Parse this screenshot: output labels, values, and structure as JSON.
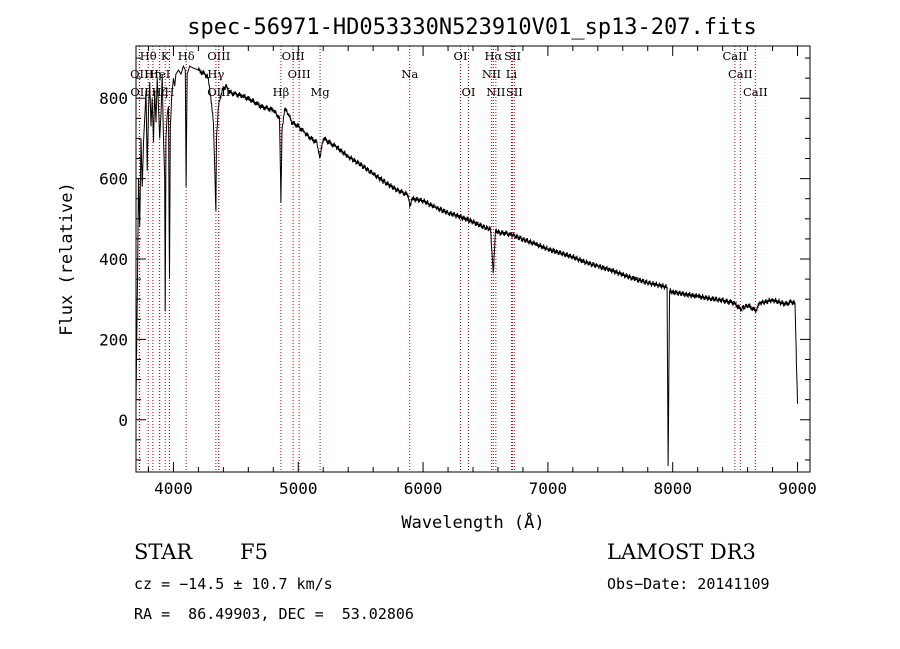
{
  "chart_data": {
    "type": "line",
    "title": "spec-56971-HD053330N523910V01_sp13-207.fits",
    "xlabel": "Wavelength (Å)",
    "ylabel": "Flux (relative)",
    "xlim": [
      3700,
      9100
    ],
    "ylim": [
      -130,
      930
    ],
    "xticks": [
      4000,
      5000,
      6000,
      7000,
      8000,
      9000
    ],
    "yticks": [
      0,
      200,
      400,
      600,
      800
    ],
    "series": [
      {
        "name": "flux",
        "x": [
          3700,
          3710,
          3720,
          3730,
          3740,
          3750,
          3760,
          3770,
          3780,
          3790,
          3800,
          3810,
          3820,
          3830,
          3840,
          3850,
          3860,
          3870,
          3880,
          3890,
          3900,
          3910,
          3920,
          3930,
          3934,
          3940,
          3950,
          3960,
          3968,
          3975,
          3985,
          4000,
          4010,
          4020,
          4040,
          4060,
          4080,
          4095,
          4101,
          4110,
          4130,
          4160,
          4200,
          4250,
          4280,
          4300,
          4320,
          4340,
          4345,
          4360,
          4390,
          4420,
          4450,
          4500,
          4550,
          4600,
          4650,
          4700,
          4750,
          4800,
          4830,
          4850,
          4861,
          4870,
          4890,
          4920,
          4950,
          5000,
          5050,
          5100,
          5150,
          5172,
          5200,
          5250,
          5300,
          5400,
          5500,
          5600,
          5700,
          5800,
          5880,
          5893,
          5910,
          6000,
          6100,
          6200,
          6300,
          6400,
          6500,
          6540,
          6562,
          6580,
          6620,
          6700,
          6800,
          6900,
          7000,
          7100,
          7200,
          7300,
          7400,
          7500,
          7600,
          7700,
          7800,
          7900,
          7955,
          7963,
          7975,
          8000,
          8100,
          8200,
          8300,
          8400,
          8498,
          8542,
          8600,
          8662,
          8700,
          8800,
          8900,
          8950,
          8980,
          9000
        ],
        "y": [
          40,
          290,
          600,
          480,
          700,
          580,
          690,
          750,
          820,
          620,
          770,
          840,
          730,
          800,
          690,
          820,
          740,
          850,
          780,
          700,
          760,
          860,
          700,
          600,
          270,
          700,
          760,
          780,
          350,
          720,
          800,
          850,
          830,
          860,
          870,
          860,
          880,
          870,
          580,
          860,
          880,
          875,
          870,
          860,
          850,
          800,
          740,
          520,
          700,
          780,
          820,
          830,
          815,
          810,
          805,
          800,
          790,
          780,
          775,
          770,
          760,
          750,
          540,
          720,
          775,
          760,
          740,
          730,
          715,
          700,
          690,
          650,
          700,
          690,
          680,
          655,
          635,
          612,
          590,
          570,
          560,
          530,
          550,
          545,
          528,
          515,
          505,
          492,
          478,
          475,
          365,
          470,
          465,
          462,
          449,
          437,
          425,
          415,
          405,
          392,
          382,
          373,
          361,
          350,
          341,
          334,
          330,
          -115,
          320,
          318,
          312,
          307,
          302,
          297,
          290,
          275,
          285,
          272,
          290,
          298,
          288,
          293,
          290,
          40
        ]
      }
    ],
    "spectral_lines": [
      {
        "label": "Hθ",
        "wavelength": 3798,
        "row": 0
      },
      {
        "label": "K",
        "wavelength": 3934,
        "row": 0
      },
      {
        "label": "Hδ",
        "wavelength": 4102,
        "row": 0
      },
      {
        "label": "OIII",
        "wavelength": 4363,
        "row": 0
      },
      {
        "label": "OIII",
        "wavelength": 4959,
        "row": 0
      },
      {
        "label": "OI",
        "wavelength": 6300,
        "row": 0
      },
      {
        "label": "Hα",
        "wavelength": 6563,
        "row": 0
      },
      {
        "label": "SII",
        "wavelength": 6717,
        "row": 0
      },
      {
        "label": "CaII",
        "wavelength": 8498,
        "row": 0
      },
      {
        "label": "OII",
        "wavelength": 3727,
        "row": 1
      },
      {
        "label": "Hη",
        "wavelength": 3835,
        "row": 1
      },
      {
        "label": "HeI",
        "wavelength": 3889,
        "row": 1
      },
      {
        "label": "Hγ",
        "wavelength": 4340,
        "row": 1
      },
      {
        "label": "OIII",
        "wavelength": 5007,
        "row": 1
      },
      {
        "label": "Na",
        "wavelength": 5893,
        "row": 1
      },
      {
        "label": "NII",
        "wavelength": 6548,
        "row": 1
      },
      {
        "label": "Li",
        "wavelength": 6708,
        "row": 1
      },
      {
        "label": "CaII",
        "wavelength": 8542,
        "row": 1
      },
      {
        "label": "OII",
        "wavelength": 3729,
        "row": 2
      },
      {
        "label": "Hζ",
        "wavelength": 3889,
        "row": 2
      },
      {
        "label": "H",
        "wavelength": 3968,
        "row": 2
      },
      {
        "label": "OIII",
        "wavelength": 4363,
        "row": 2
      },
      {
        "label": "Hβ",
        "wavelength": 4861,
        "row": 2
      },
      {
        "label": "Mg",
        "wavelength": 5175,
        "row": 2
      },
      {
        "label": "OI",
        "wavelength": 6364,
        "row": 2
      },
      {
        "label": "NII",
        "wavelength": 6583,
        "row": 2
      },
      {
        "label": "SII",
        "wavelength": 6731,
        "row": 2
      },
      {
        "label": "CaII",
        "wavelength": 8662,
        "row": 2
      }
    ]
  },
  "info": {
    "object_class": "STAR",
    "subclass": "F5",
    "survey": "LAMOST DR3",
    "cz": "cz = −14.5 ± 10.7 km/s",
    "obs_date": "Obs−Date: 20141109",
    "coords": "RA =  86.49903, DEC =  53.02806"
  },
  "colors": {
    "spectrum": "#000000",
    "line_markers": "#c00000",
    "axes": "#000000"
  }
}
